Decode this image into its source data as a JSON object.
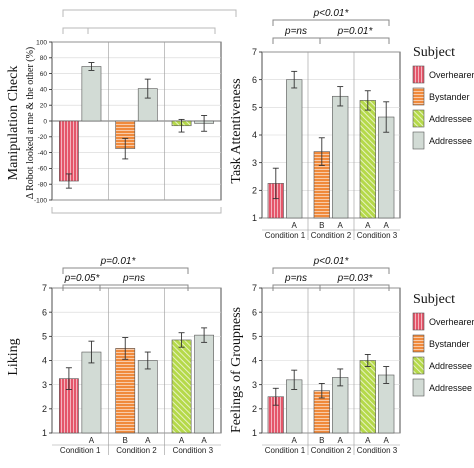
{
  "colors": {
    "overhearer": "#e4566a",
    "bystander": "#f08a3c",
    "addressee_striped": "#b5d94a",
    "addressee": "#d2dbd5",
    "grid": "#9a9a9a",
    "panel_bg": "#ffffff"
  },
  "legend": {
    "title": "Subject",
    "items": [
      {
        "label": "Overhearer",
        "style": "overhearer"
      },
      {
        "label": "Bystander",
        "style": "bystander"
      },
      {
        "label": "Addressee",
        "style": "addressee_striped"
      },
      {
        "label": "Addressee",
        "style": "addressee"
      }
    ]
  },
  "chart_data": [
    {
      "id": "manipulation",
      "type": "bar",
      "ylabel": "Manipulation Check",
      "ylabel2": "Δ Robot looked at me & the other (%)",
      "ylim": [
        -100,
        100
      ],
      "yticks": [
        100,
        80,
        60,
        40,
        20,
        0,
        -20,
        -40,
        -60,
        -80,
        -100
      ],
      "groups": [],
      "bar_labels": [],
      "bars": [
        {
          "group": 0,
          "style": "overhearer",
          "value": -76,
          "err": 9
        },
        {
          "group": 0,
          "style": "addressee",
          "value": 69,
          "err": 5
        },
        {
          "group": 1,
          "style": "bystander",
          "value": -35,
          "err": 13
        },
        {
          "group": 1,
          "style": "addressee",
          "value": 41,
          "err": 12
        },
        {
          "group": 2,
          "style": "addressee_striped",
          "value": -6,
          "err": 8
        },
        {
          "group": 2,
          "style": "addressee",
          "value": -3,
          "err": 10
        }
      ],
      "brackets": [],
      "annotations": []
    },
    {
      "id": "task",
      "type": "bar",
      "ylabel": "Task Attentiveness",
      "ylim": [
        1,
        7
      ],
      "yticks": [
        7,
        6,
        5,
        4,
        3,
        2,
        1
      ],
      "groups": [
        "Condition 1",
        "Condition 2",
        "Condition 3"
      ],
      "bar_labels": [
        "",
        "A",
        "B",
        "A",
        "A",
        "A"
      ],
      "bars": [
        {
          "group": 0,
          "style": "overhearer",
          "value": 2.25,
          "err": 0.55
        },
        {
          "group": 0,
          "style": "addressee",
          "value": 6.0,
          "err": 0.3
        },
        {
          "group": 1,
          "style": "bystander",
          "value": 3.4,
          "err": 0.5
        },
        {
          "group": 1,
          "style": "addressee",
          "value": 5.4,
          "err": 0.35
        },
        {
          "group": 2,
          "style": "addressee_striped",
          "value": 5.25,
          "err": 0.35
        },
        {
          "group": 2,
          "style": "addressee",
          "value": 4.65,
          "err": 0.55
        }
      ],
      "brackets": [],
      "annotations": [
        "p<0.01*",
        "p=ns",
        "p=0.01*"
      ]
    },
    {
      "id": "liking",
      "type": "bar",
      "ylabel": "Liking",
      "ylim": [
        1,
        7
      ],
      "yticks": [
        7,
        6,
        5,
        4,
        3,
        2,
        1
      ],
      "groups": [
        "Condition 1",
        "Condition 2",
        "Condition 3"
      ],
      "bar_labels": [
        "",
        "A",
        "B",
        "A",
        "A",
        "A"
      ],
      "bars": [
        {
          "group": 0,
          "style": "overhearer",
          "value": 3.25,
          "err": 0.45
        },
        {
          "group": 0,
          "style": "addressee",
          "value": 4.35,
          "err": 0.45
        },
        {
          "group": 1,
          "style": "bystander",
          "value": 4.5,
          "err": 0.45
        },
        {
          "group": 1,
          "style": "addressee",
          "value": 4.0,
          "err": 0.35
        },
        {
          "group": 2,
          "style": "addressee_striped",
          "value": 4.85,
          "err": 0.3
        },
        {
          "group": 2,
          "style": "addressee",
          "value": 5.05,
          "err": 0.3
        }
      ],
      "brackets": [],
      "annotations": [
        "p=0.01*",
        "p=0.05*",
        "p=ns"
      ]
    },
    {
      "id": "groupness",
      "type": "bar",
      "ylabel": "Feelings of Groupness",
      "ylim": [
        1,
        7
      ],
      "yticks": [
        7,
        6,
        5,
        4,
        3,
        2,
        1
      ],
      "groups": [
        "Condition 1",
        "Condition 2",
        "Condition 3"
      ],
      "bar_labels": [
        "",
        "A",
        "B",
        "A",
        "A",
        "A"
      ],
      "bars": [
        {
          "group": 0,
          "style": "overhearer",
          "value": 2.5,
          "err": 0.35
        },
        {
          "group": 0,
          "style": "addressee",
          "value": 3.2,
          "err": 0.4
        },
        {
          "group": 1,
          "style": "bystander",
          "value": 2.75,
          "err": 0.3
        },
        {
          "group": 1,
          "style": "addressee",
          "value": 3.3,
          "err": 0.35
        },
        {
          "group": 2,
          "style": "addressee_striped",
          "value": 4.0,
          "err": 0.25
        },
        {
          "group": 2,
          "style": "addressee",
          "value": 3.4,
          "err": 0.35
        }
      ],
      "brackets": [],
      "annotations": [
        "p<0.01*",
        "p=ns",
        "p=0.03*"
      ]
    }
  ]
}
